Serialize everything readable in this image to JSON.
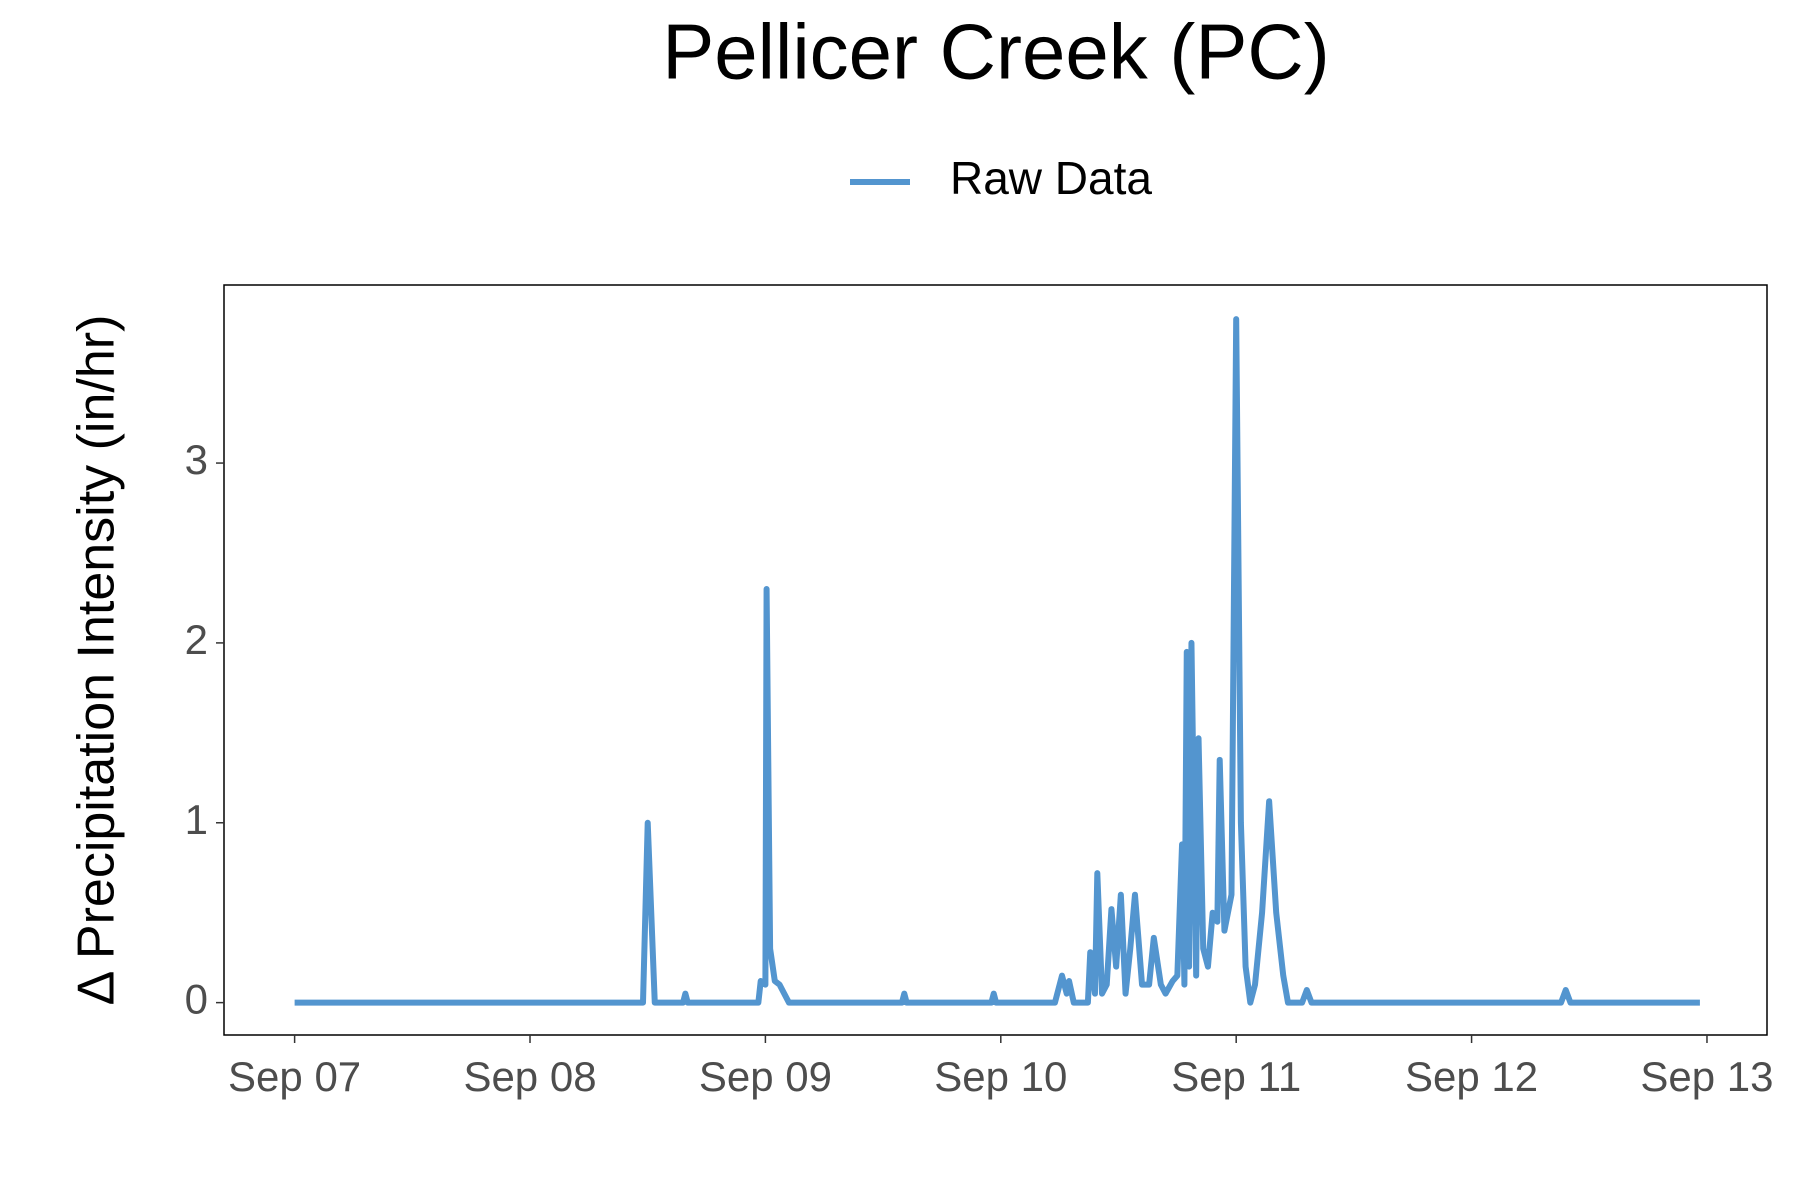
{
  "chart_data": {
    "type": "line",
    "title": "Pellicer Creek (PC)",
    "y_label": "Δ Precipitation Intensity (in/hr)",
    "legend": "top",
    "xlim": [
      6.7,
      13.255
    ],
    "xticks": [
      {
        "value": 7,
        "label": "Sep 07"
      },
      {
        "value": 8,
        "label": "Sep 08"
      },
      {
        "value": 9,
        "label": "Sep 09"
      },
      {
        "value": 10,
        "label": "Sep 10"
      },
      {
        "value": 11,
        "label": "Sep 11"
      },
      {
        "value": 12,
        "label": "Sep 12"
      },
      {
        "value": 13,
        "label": "Sep 13"
      }
    ],
    "ylim": [
      -0.18,
      3.99
    ],
    "yticks": [
      0,
      1,
      2,
      3
    ],
    "series": [
      {
        "name": "Raw Data",
        "color": "#5395cf",
        "x": [
          7.0,
          8.48,
          8.5,
          8.53,
          8.65,
          8.66,
          8.67,
          8.97,
          8.98,
          9.0,
          9.005,
          9.02,
          9.04,
          9.06,
          9.08,
          9.1,
          9.58,
          9.59,
          9.6,
          9.96,
          9.97,
          9.98,
          10.23,
          10.26,
          10.28,
          10.29,
          10.31,
          10.37,
          10.38,
          10.4,
          10.41,
          10.43,
          10.45,
          10.47,
          10.49,
          10.51,
          10.53,
          10.55,
          10.57,
          10.6,
          10.63,
          10.65,
          10.68,
          10.7,
          10.73,
          10.75,
          10.77,
          10.78,
          10.79,
          10.8,
          10.81,
          10.83,
          10.84,
          10.86,
          10.88,
          10.9,
          10.92,
          10.93,
          10.95,
          10.98,
          11.0,
          11.02,
          11.04,
          11.06,
          11.08,
          11.11,
          11.14,
          11.17,
          11.2,
          11.22,
          11.28,
          11.3,
          11.32,
          12.38,
          12.4,
          12.42,
          12.97
        ],
        "values": [
          0,
          0,
          1.0,
          0,
          0,
          0.05,
          0,
          0,
          0.12,
          0.1,
          2.3,
          0.3,
          0.12,
          0.1,
          0.05,
          0,
          0,
          0.05,
          0,
          0,
          0.05,
          0,
          0,
          0.15,
          0.05,
          0.12,
          0,
          0,
          0.28,
          0.05,
          0.72,
          0.05,
          0.1,
          0.52,
          0.2,
          0.6,
          0.05,
          0.3,
          0.6,
          0.1,
          0.1,
          0.36,
          0.1,
          0.05,
          0.12,
          0.15,
          0.88,
          0.1,
          1.95,
          0.2,
          2.0,
          0.15,
          1.47,
          0.3,
          0.2,
          0.5,
          0.45,
          1.35,
          0.4,
          0.6,
          3.8,
          1.0,
          0.2,
          0,
          0.1,
          0.5,
          1.12,
          0.5,
          0.15,
          0,
          0,
          0.07,
          0,
          0,
          0.07,
          0,
          0
        ]
      }
    ]
  }
}
